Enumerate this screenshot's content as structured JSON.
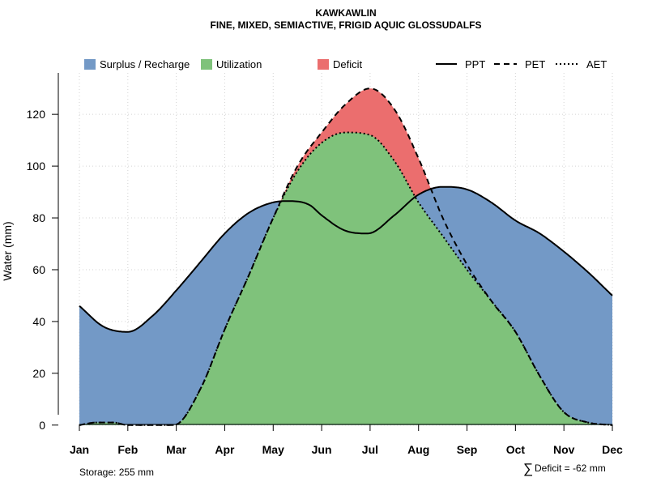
{
  "chart_data": {
    "type": "area",
    "title": "KAWKAWLIN",
    "subtitle": "FINE, MIXED, SEMIACTIVE, FRIGID AQUIC GLOSSUDALFS",
    "xlabel": "",
    "ylabel": "Water (mm)",
    "categories": [
      "Jan",
      "Feb",
      "Mar",
      "Apr",
      "May",
      "Jun",
      "Jul",
      "Aug",
      "Sep",
      "Oct",
      "Nov",
      "Dec"
    ],
    "ylim": [
      -1,
      136
    ],
    "yticks": [
      0,
      20,
      40,
      60,
      80,
      100,
      120
    ],
    "ytick_labels": [
      "0",
      "20",
      "40",
      "60",
      "80",
      "100",
      "120"
    ],
    "grid": true,
    "legend_position": "top",
    "series": [
      {
        "name": "PPT",
        "style": "solid",
        "values": [
          [
            0,
            46
          ],
          [
            0.5,
            38
          ],
          [
            1,
            36
          ],
          [
            1.5,
            42
          ],
          [
            2,
            52
          ],
          [
            2.5,
            63
          ],
          [
            3,
            74
          ],
          [
            3.5,
            82
          ],
          [
            4,
            86
          ],
          [
            4.3,
            86.5
          ],
          [
            4.75,
            85
          ],
          [
            5,
            81
          ],
          [
            5.5,
            75
          ],
          [
            5.95,
            74
          ],
          [
            6.5,
            81
          ],
          [
            7,
            89
          ],
          [
            7.5,
            92
          ],
          [
            8,
            91
          ],
          [
            8.5,
            86
          ],
          [
            9,
            79
          ],
          [
            9.5,
            74
          ],
          [
            10,
            67
          ],
          [
            10.5,
            59
          ],
          [
            11,
            50
          ]
        ]
      },
      {
        "name": "PET",
        "style": "dashed",
        "values": [
          [
            0,
            0
          ],
          [
            0.35,
            1
          ],
          [
            0.7,
            1
          ],
          [
            1,
            0
          ],
          [
            1.5,
            0
          ],
          [
            1.95,
            0
          ],
          [
            2.5,
            14
          ],
          [
            3,
            37
          ],
          [
            3.5,
            58
          ],
          [
            4,
            80
          ],
          [
            4.5,
            100
          ],
          [
            5,
            113
          ],
          [
            5.5,
            124
          ],
          [
            6,
            130
          ],
          [
            6.5,
            122
          ],
          [
            7,
            103
          ],
          [
            7.5,
            80
          ],
          [
            8,
            62
          ],
          [
            8.5,
            48
          ],
          [
            9,
            36
          ],
          [
            9.5,
            19
          ],
          [
            10,
            5
          ],
          [
            10.5,
            1
          ],
          [
            11,
            0
          ]
        ]
      },
      {
        "name": "AET",
        "style": "dotted",
        "values": [
          [
            0,
            0
          ],
          [
            0.35,
            1
          ],
          [
            0.7,
            1
          ],
          [
            1,
            0
          ],
          [
            1.5,
            0
          ],
          [
            1.95,
            0
          ],
          [
            2.5,
            14
          ],
          [
            3,
            37
          ],
          [
            3.5,
            58
          ],
          [
            4,
            80
          ],
          [
            4.5,
            98
          ],
          [
            5,
            109
          ],
          [
            5.5,
            113
          ],
          [
            6,
            112
          ],
          [
            6.5,
            102
          ],
          [
            7,
            86
          ],
          [
            7.5,
            73
          ],
          [
            8,
            60
          ],
          [
            8.5,
            48
          ],
          [
            9,
            36
          ],
          [
            9.5,
            19
          ],
          [
            10,
            5
          ],
          [
            10.5,
            1
          ],
          [
            11,
            0
          ]
        ]
      }
    ],
    "areas": [
      {
        "name": "Surplus / Recharge",
        "color": "#7399C6"
      },
      {
        "name": "Utilization",
        "color": "#7FC27B"
      },
      {
        "name": "Deficit",
        "color": "#EB6E6E"
      }
    ],
    "annotations": {
      "storage": "Storage: 255 mm",
      "deficit_symbol": "∑",
      "deficit": "Deficit = -62 mm"
    }
  }
}
